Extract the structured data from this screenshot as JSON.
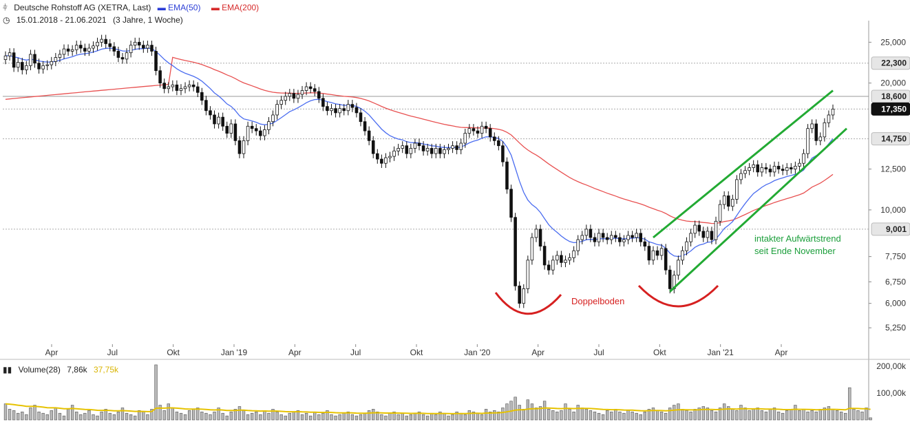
{
  "header": {
    "title": "Deutsche Rohstoff AG (XETRA, Last)",
    "ema50_label": "EMA(50)",
    "ema200_label": "EMA(200)",
    "range": "15.01.2018 - 21.06.2021",
    "period": "(3 Jahre, 1 Woche)"
  },
  "volume_panel": {
    "label": "Volume(28)",
    "last_value": "7,86k",
    "ma_value": "37,75k",
    "y_ticks": [
      "200,00k",
      "100,00k"
    ]
  },
  "colors": {
    "ema50": "#4a6cf0",
    "ema200": "#e85050",
    "channel": "#22aa33",
    "doppelboden": "#d62020",
    "volume_ma": "#e6c200",
    "up_candle": "#ffffff",
    "down_candle": "#111111"
  },
  "chart_data": {
    "type": "candlestick",
    "price_axis": {
      "scale": "log",
      "ylim": [
        4800,
        27500
      ],
      "ticks": [
        "25,000",
        "20,000",
        "12,500",
        "10,000",
        "7,750",
        "6,750",
        "6,000",
        "5,250"
      ]
    },
    "price_tags": [
      {
        "label": "22,300",
        "value": 22300,
        "style": "light"
      },
      {
        "label": "18,600",
        "value": 18600,
        "style": "light"
      },
      {
        "label": "17,350",
        "value": 17350,
        "style": "dark"
      },
      {
        "label": "14,750",
        "value": 14750,
        "style": "light"
      },
      {
        "label": "9,001",
        "value": 9001,
        "style": "light"
      }
    ],
    "x_axis_labels": [
      "Apr",
      "Jul",
      "Okt",
      "Jan '19",
      "Apr",
      "Jul",
      "Okt",
      "Jan '20",
      "Apr",
      "Jul",
      "Okt",
      "Jan '21",
      "Apr"
    ],
    "annotations": {
      "channel_text_1": "intakter Aufwärtstrend",
      "channel_text_2": "seit Ende November",
      "doppelboden": "Doppelboden"
    },
    "close": [
      23.2,
      23.6,
      21.8,
      22.4,
      21.5,
      22.0,
      23.4,
      22.3,
      21.6,
      22.0,
      22.1,
      22.5,
      23.0,
      23.4,
      24.1,
      23.8,
      24.0,
      24.6,
      24.2,
      23.8,
      24.2,
      24.5,
      25.0,
      25.4,
      24.8,
      24.4,
      23.8,
      23.0,
      22.8,
      23.6,
      24.6,
      25.0,
      24.6,
      24.2,
      24.6,
      23.8,
      21.4,
      20.0,
      19.4,
      19.6,
      19.8,
      19.2,
      19.4,
      19.6,
      19.8,
      19.6,
      19.0,
      18.2,
      17.2,
      16.8,
      16.0,
      16.6,
      15.8,
      15.2,
      16.0,
      14.6,
      13.6,
      14.6,
      15.8,
      15.6,
      15.4,
      15.0,
      15.5,
      16.2,
      16.8,
      17.8,
      18.2,
      18.6,
      18.9,
      18.4,
      18.8,
      19.2,
      19.6,
      19.4,
      19.1,
      18.4,
      17.6,
      17.2,
      17.4,
      17.0,
      17.4,
      17.2,
      17.8,
      17.5,
      17.0,
      16.2,
      15.4,
      14.6,
      13.6,
      13.2,
      12.9,
      13.3,
      13.4,
      13.8,
      14.0,
      14.2,
      13.6,
      14.0,
      14.4,
      14.2,
      13.8,
      14.0,
      13.6,
      14.0,
      13.6,
      13.9,
      14.0,
      14.2,
      13.9,
      14.4,
      15.2,
      15.6,
      15.4,
      15.2,
      15.8,
      15.6,
      14.9,
      14.6,
      14.2,
      13.0,
      11.2,
      9.6,
      6.6,
      6.0,
      6.5,
      7.6,
      8.6,
      9.0,
      8.2,
      7.4,
      7.2,
      7.6,
      7.8,
      7.5,
      7.6,
      7.7,
      8.0,
      8.5,
      8.7,
      9.0,
      8.6,
      8.4,
      8.8,
      8.6,
      8.5,
      8.7,
      8.6,
      8.4,
      8.5,
      8.7,
      8.6,
      8.8,
      8.4,
      8.2,
      7.6,
      8.0,
      7.8,
      8.1,
      7.2,
      6.5,
      7.0,
      7.6,
      8.0,
      8.4,
      8.8,
      9.2,
      8.9,
      8.6,
      8.9,
      8.5,
      9.4,
      10.3,
      10.8,
      10.2,
      10.6,
      11.8,
      12.2,
      12.4,
      12.6,
      12.8,
      12.3,
      12.6,
      12.5,
      12.3,
      12.7,
      12.5,
      12.4,
      12.6,
      12.5,
      12.7,
      12.9,
      13.6,
      15.6,
      16.0,
      14.6,
      14.9,
      16.1,
      16.8,
      17.35
    ],
    "volume_k": [
      60,
      40,
      35,
      25,
      30,
      20,
      45,
      55,
      30,
      25,
      20,
      35,
      45,
      25,
      15,
      40,
      55,
      30,
      20,
      25,
      35,
      20,
      15,
      30,
      40,
      25,
      20,
      30,
      45,
      25,
      20,
      15,
      35,
      30,
      20,
      40,
      205,
      55,
      35,
      60,
      45,
      30,
      25,
      20,
      35,
      40,
      45,
      30,
      25,
      20,
      30,
      45,
      25,
      15,
      30,
      40,
      50,
      35,
      20,
      25,
      30,
      20,
      35,
      25,
      40,
      30,
      20,
      15,
      25,
      30,
      35,
      20,
      25,
      15,
      30,
      20,
      25,
      35,
      20,
      15,
      20,
      25,
      30,
      20,
      15,
      20,
      25,
      35,
      40,
      30,
      20,
      15,
      25,
      30,
      20,
      25,
      15,
      20,
      25,
      30,
      20,
      15,
      25,
      20,
      30,
      25,
      15,
      20,
      30,
      25,
      20,
      35,
      30,
      25,
      20,
      40,
      30,
      35,
      30,
      45,
      60,
      70,
      85,
      55,
      40,
      75,
      60,
      45,
      50,
      70,
      40,
      35,
      30,
      35,
      60,
      40,
      30,
      55,
      45,
      40,
      35,
      30,
      25,
      20,
      35,
      30,
      40,
      30,
      25,
      35,
      30,
      25,
      20,
      30,
      40,
      45,
      35,
      30,
      25,
      45,
      55,
      60,
      40,
      35,
      30,
      40,
      45,
      50,
      45,
      35,
      30,
      45,
      60,
      50,
      40,
      35,
      55,
      45,
      35,
      40,
      45,
      35,
      30,
      40,
      45,
      30,
      25,
      35,
      40,
      55,
      35,
      40,
      30,
      35,
      30,
      40,
      45,
      50,
      40,
      35,
      30,
      25,
      120,
      40,
      35,
      30,
      45,
      8
    ]
  }
}
